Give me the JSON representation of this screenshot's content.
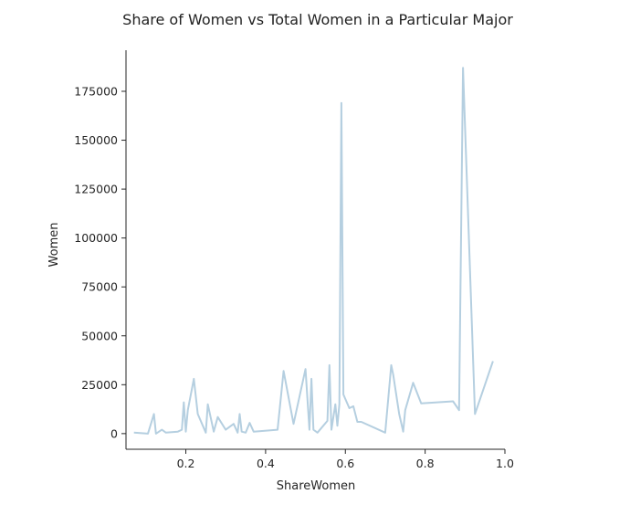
{
  "chart_data": {
    "type": "line",
    "title": "Share of Women vs Total Women in a Particular Major",
    "xlabel": "ShareWomen",
    "ylabel": "Women",
    "xlim": [
      0.05,
      1.0
    ],
    "ylim": [
      -8000,
      196000
    ],
    "xticks": [
      0.2,
      0.4,
      0.6,
      0.8,
      1.0
    ],
    "xtick_labels": [
      "0.2",
      "0.4",
      "0.6",
      "0.8",
      "1.0"
    ],
    "yticks": [
      0,
      25000,
      50000,
      75000,
      100000,
      125000,
      150000,
      175000
    ],
    "ytick_labels": [
      "0",
      "25000",
      "50000",
      "75000",
      "100000",
      "125000",
      "150000",
      "175000"
    ],
    "grid": false,
    "spines": "left-bottom",
    "line_color": "#b5cfe0",
    "series": [
      {
        "name": "",
        "x": [
          0.07,
          0.105,
          0.12,
          0.125,
          0.14,
          0.15,
          0.18,
          0.19,
          0.195,
          0.2,
          0.205,
          0.22,
          0.23,
          0.25,
          0.255,
          0.27,
          0.28,
          0.3,
          0.32,
          0.33,
          0.335,
          0.34,
          0.35,
          0.36,
          0.37,
          0.43,
          0.445,
          0.47,
          0.5,
          0.51,
          0.515,
          0.52,
          0.53,
          0.555,
          0.56,
          0.565,
          0.575,
          0.58,
          0.585,
          0.59,
          0.595,
          0.61,
          0.62,
          0.63,
          0.64,
          0.7,
          0.715,
          0.72,
          0.735,
          0.745,
          0.75,
          0.77,
          0.79,
          0.87,
          0.885,
          0.895,
          0.925,
          0.97
        ],
        "y": [
          500,
          0,
          10000,
          0,
          2000,
          500,
          1000,
          2000,
          16000,
          1000,
          12000,
          28000,
          10000,
          500,
          15000,
          1000,
          8500,
          2000,
          5000,
          500,
          10000,
          1000,
          500,
          5500,
          1000,
          2000,
          32000,
          5000,
          33000,
          2000,
          28000,
          2000,
          500,
          6500,
          35000,
          2000,
          15000,
          4000,
          15000,
          169000,
          20000,
          13000,
          14000,
          6000,
          6000,
          500,
          35000,
          30000,
          10000,
          1000,
          12000,
          26000,
          15500,
          16500,
          12000,
          187000,
          10000,
          37000
        ]
      }
    ]
  }
}
